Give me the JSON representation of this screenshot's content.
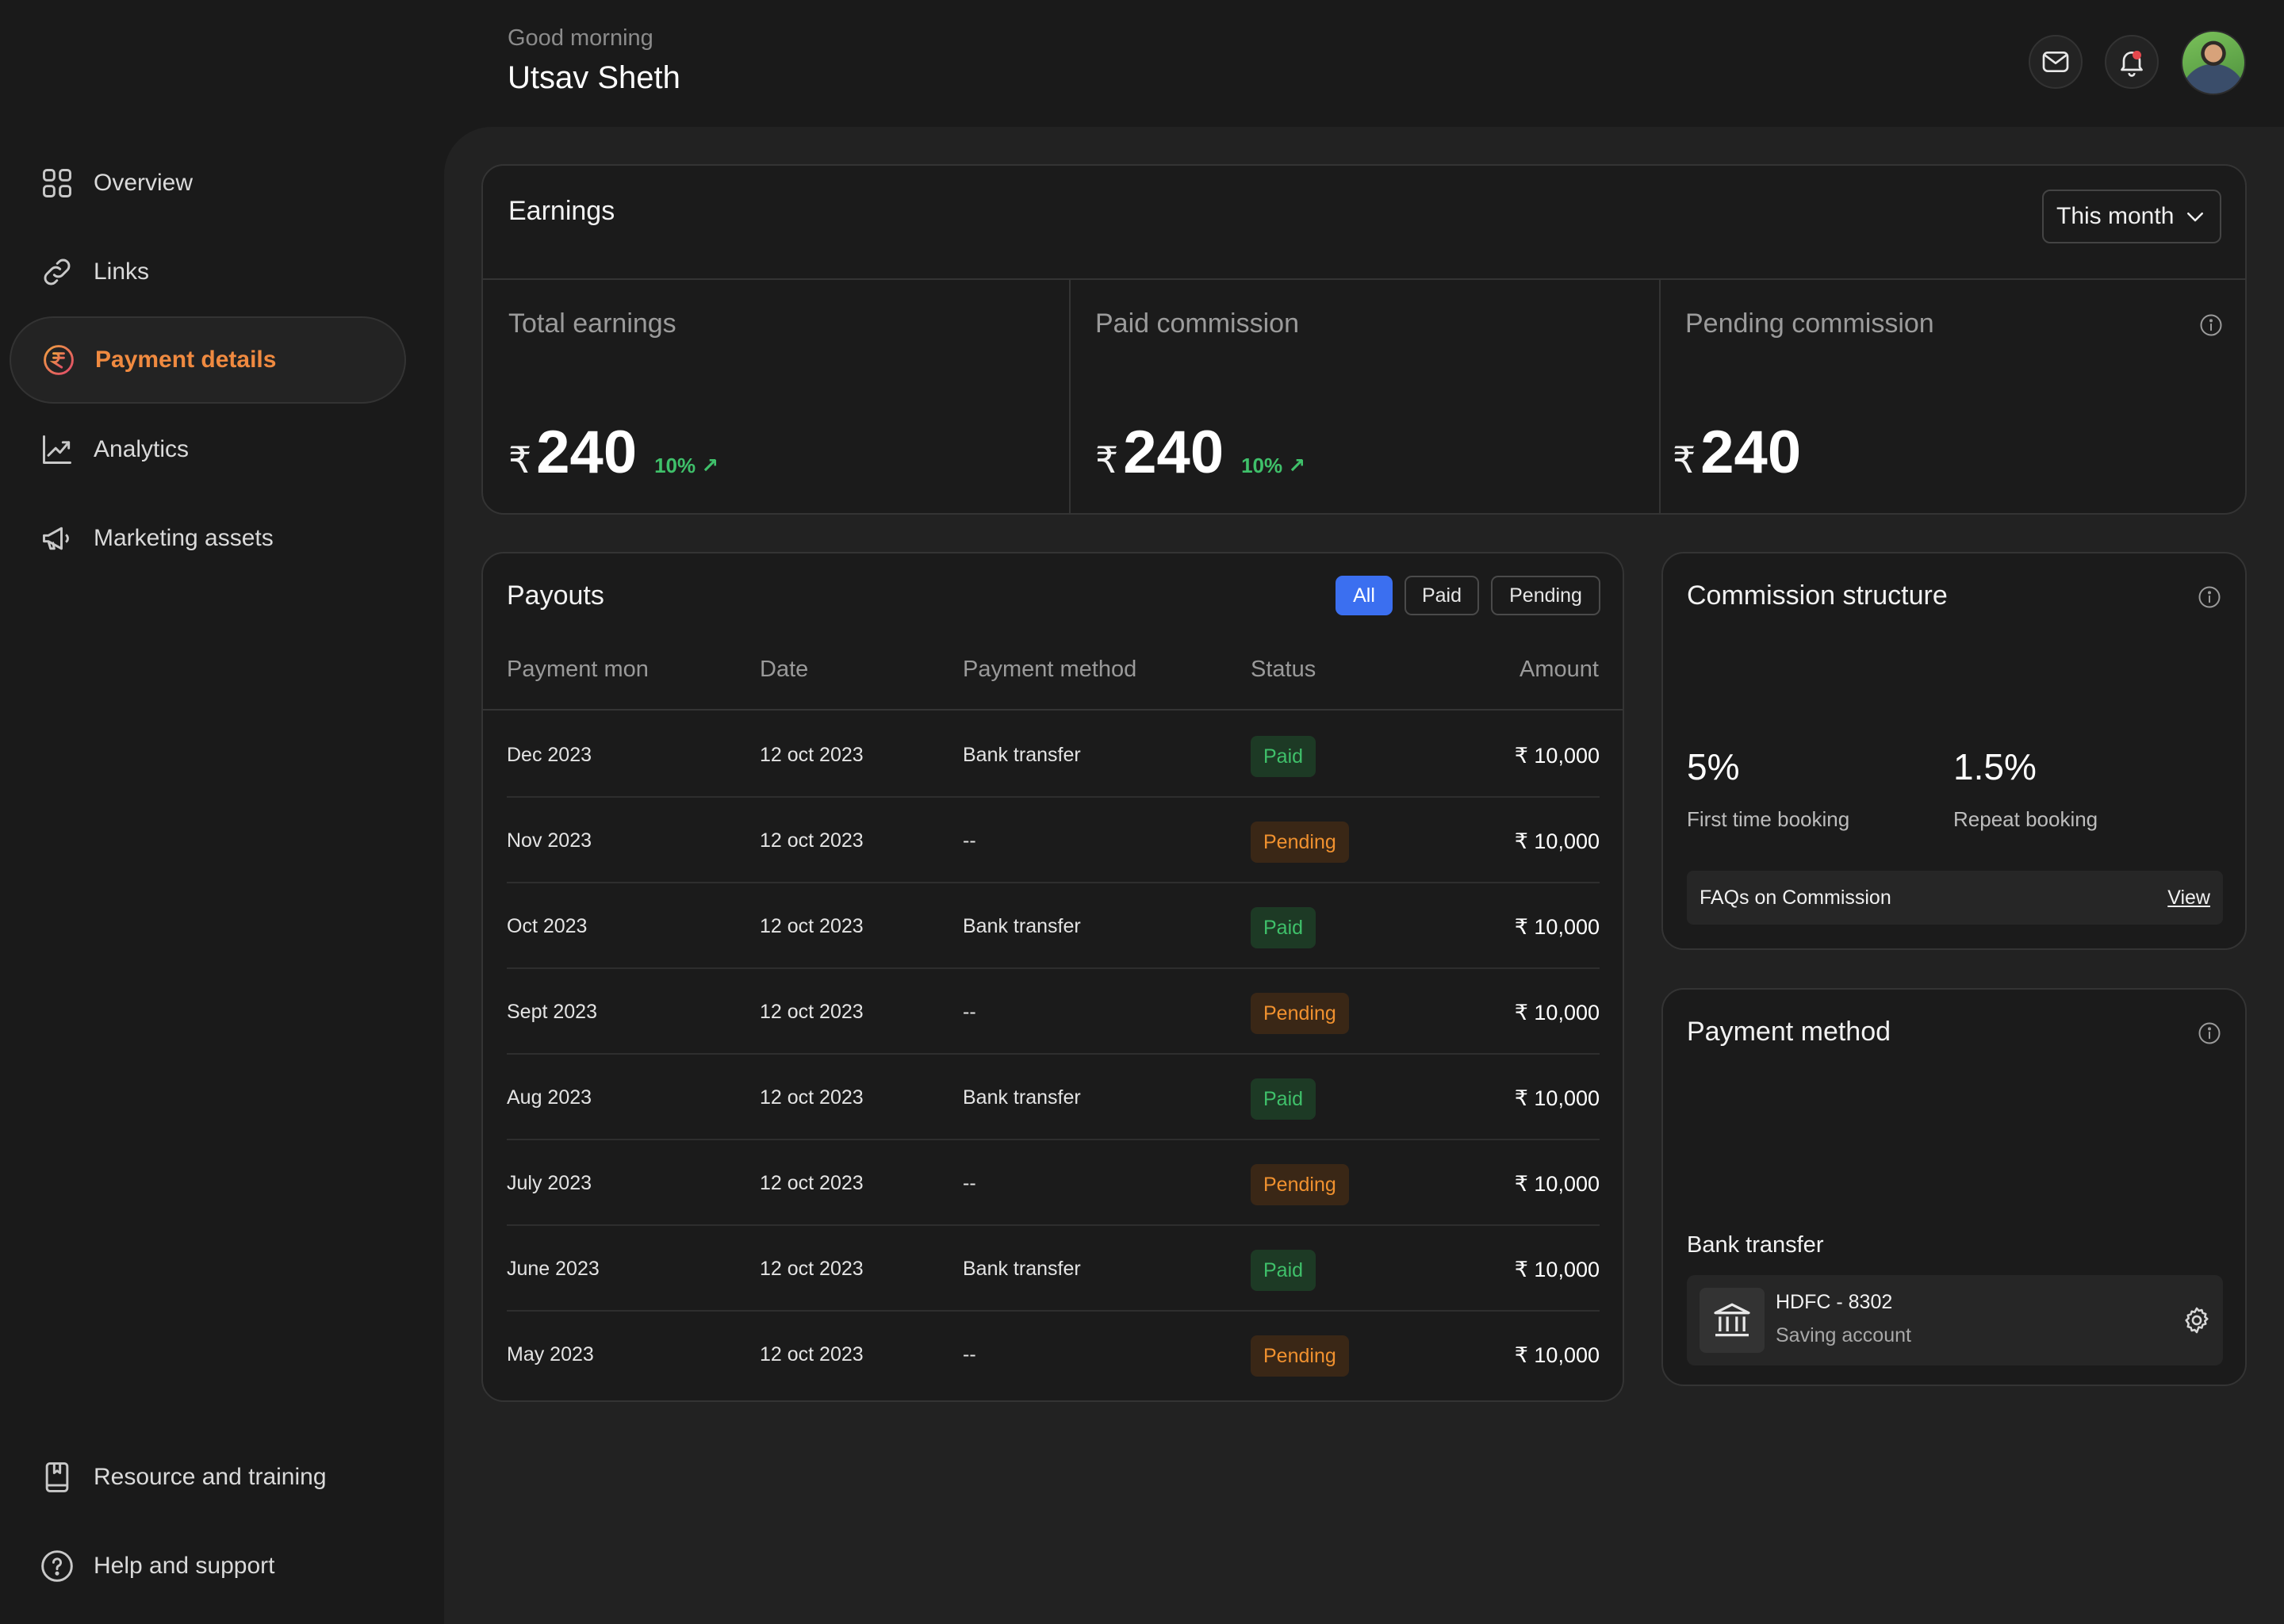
{
  "header": {
    "greeting": "Good morning",
    "user_name": "Utsav Sheth"
  },
  "sidebar": {
    "items": [
      {
        "label": "Overview",
        "icon": "grid-icon"
      },
      {
        "label": "Links",
        "icon": "link-icon"
      },
      {
        "label": "Payment details",
        "icon": "rupee-circle-icon",
        "active": true
      },
      {
        "label": "Analytics",
        "icon": "chart-up-icon"
      },
      {
        "label": "Marketing assets",
        "icon": "megaphone-icon"
      }
    ],
    "bottom_items": [
      {
        "label": "Resource and training",
        "icon": "book-icon"
      },
      {
        "label": "Help and support",
        "icon": "help-circle-icon"
      }
    ]
  },
  "earnings": {
    "title": "Earnings",
    "period": "This month",
    "stats": [
      {
        "label": "Total earnings",
        "currency": "₹",
        "value": "240",
        "delta": "10% ↗"
      },
      {
        "label": "Paid commission",
        "currency": "₹",
        "value": "240",
        "delta": "10% ↗"
      },
      {
        "label": "Pending commission",
        "currency": "₹",
        "value": "240"
      }
    ]
  },
  "payouts": {
    "title": "Payouts",
    "filters": [
      "All",
      "Paid",
      "Pending"
    ],
    "active_filter": "All",
    "columns": [
      "Payment mon",
      "Date",
      "Payment method",
      "Status",
      "Amount"
    ],
    "rows": [
      {
        "month": "Dec 2023",
        "date": "12 oct 2023",
        "method": "Bank transfer",
        "status": "Paid",
        "amount": "₹ 10,000"
      },
      {
        "month": "Nov 2023",
        "date": "12 oct 2023",
        "method": "--",
        "status": "Pending",
        "amount": "₹ 10,000"
      },
      {
        "month": "Oct 2023",
        "date": "12 oct 2023",
        "method": "Bank transfer",
        "status": "Paid",
        "amount": "₹ 10,000"
      },
      {
        "month": "Sept 2023",
        "date": "12 oct 2023",
        "method": "--",
        "status": "Pending",
        "amount": "₹ 10,000"
      },
      {
        "month": "Aug 2023",
        "date": "12 oct 2023",
        "method": "Bank transfer",
        "status": "Paid",
        "amount": "₹ 10,000"
      },
      {
        "month": "July 2023",
        "date": "12 oct 2023",
        "method": "--",
        "status": "Pending",
        "amount": "₹ 10,000"
      },
      {
        "month": "June 2023",
        "date": "12 oct 2023",
        "method": "Bank transfer",
        "status": "Paid",
        "amount": "₹ 10,000"
      },
      {
        "month": "May 2023",
        "date": "12 oct 2023",
        "method": "--",
        "status": "Pending",
        "amount": "₹ 10,000"
      }
    ]
  },
  "commission": {
    "title": "Commission structure",
    "items": [
      {
        "value": "5%",
        "label": "First time booking"
      },
      {
        "value": "1.5%",
        "label": "Repeat booking"
      }
    ],
    "faq_text": "FAQs on Commission",
    "faq_link": "View"
  },
  "payment_method": {
    "title": "Payment method",
    "type": "Bank transfer",
    "account_name": "HDFC - 8302",
    "account_type": "Saving account"
  },
  "colors": {
    "accent_active": "#f08a40",
    "filter_active": "#3b6ff0",
    "paid": "#3fc06a",
    "pending": "#f0912f"
  }
}
